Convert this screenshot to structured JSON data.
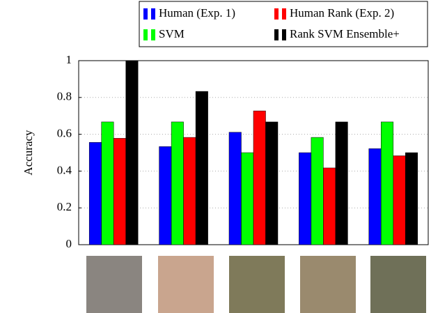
{
  "chart_data": {
    "type": "bar",
    "y_label": "Accuracy",
    "categories": [
      null,
      null,
      null,
      null,
      null
    ],
    "series": [
      {
        "name": "Human (Exp. 1)",
        "color": "#0000ff",
        "values": [
          0.556,
          0.533,
          0.611,
          0.5,
          0.522
        ]
      },
      {
        "name": "SVM",
        "color": "#00ff00",
        "values": [
          0.667,
          0.667,
          0.5,
          0.583,
          0.667
        ]
      },
      {
        "name": "Human Rank (Exp. 2)",
        "color": "#ff0000",
        "values": [
          0.578,
          0.583,
          0.727,
          0.417,
          0.483
        ]
      },
      {
        "name": "Rank SVM Ensemble+",
        "color": "#000000",
        "values": [
          1,
          0.833,
          0.667,
          0.667,
          0.5
        ]
      }
    ],
    "ylim": [
      0,
      1
    ],
    "yticks": [
      0,
      0.2,
      0.4,
      0.6,
      0.8,
      1
    ],
    "grid": true
  }
}
